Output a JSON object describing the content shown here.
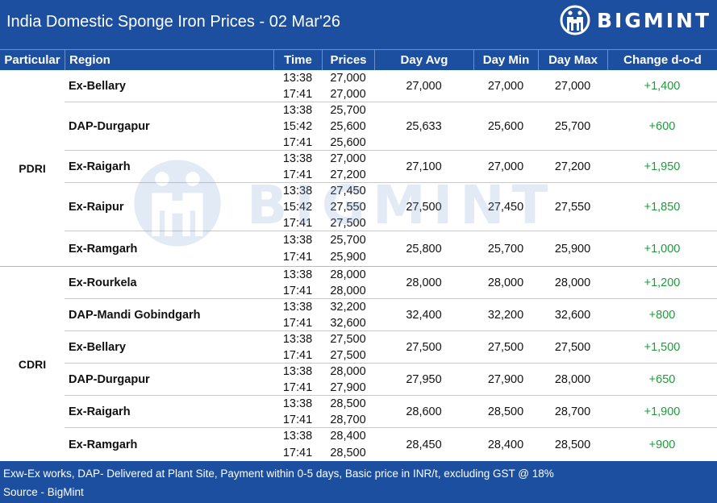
{
  "header": {
    "title": "India Domestic Sponge Iron Prices - 02 Mar'26",
    "logo_text": "BIGMINT"
  },
  "columns": [
    "Particular",
    "Region",
    "Time",
    "Prices",
    "Day Avg",
    "Day Min",
    "Day Max",
    "Change d-o-d"
  ],
  "groups": [
    {
      "label": "PDRI",
      "rows": [
        {
          "region": "Ex-Bellary",
          "entries": [
            [
              "13:38",
              "27,000"
            ],
            [
              "17:41",
              "27,000"
            ]
          ],
          "day_avg": "27,000",
          "day_min": "27,000",
          "day_max": "27,000",
          "change": "+1,400"
        },
        {
          "region": "DAP-Durgapur",
          "entries": [
            [
              "13:38",
              "25,700"
            ],
            [
              "15:42",
              "25,600"
            ],
            [
              "17:41",
              "25,600"
            ]
          ],
          "day_avg": "25,633",
          "day_min": "25,600",
          "day_max": "25,700",
          "change": "+600"
        },
        {
          "region": "Ex-Raigarh",
          "entries": [
            [
              "13:38",
              "27,000"
            ],
            [
              "17:41",
              "27,200"
            ]
          ],
          "day_avg": "27,100",
          "day_min": "27,000",
          "day_max": "27,200",
          "change": "+1,950"
        },
        {
          "region": "Ex-Raipur",
          "entries": [
            [
              "13:38",
              "27,450"
            ],
            [
              "15:42",
              "27,550"
            ],
            [
              "17:41",
              "27,500"
            ]
          ],
          "day_avg": "27,500",
          "day_min": "27,450",
          "day_max": "27,550",
          "change": "+1,850"
        },
        {
          "region": "Ex-Ramgarh",
          "entries": [
            [
              "13:38",
              "25,700"
            ],
            [
              "17:41",
              "25,900"
            ]
          ],
          "day_avg": "25,800",
          "day_min": "25,700",
          "day_max": "25,900",
          "change": "+1,000"
        }
      ]
    },
    {
      "label": "CDRI",
      "rows": [
        {
          "region": "Ex-Rourkela",
          "entries": [
            [
              "13:38",
              "28,000"
            ],
            [
              "17:41",
              "28,000"
            ]
          ],
          "day_avg": "28,000",
          "day_min": "28,000",
          "day_max": "28,000",
          "change": "+1,200"
        },
        {
          "region": "DAP-Mandi Gobindgarh",
          "entries": [
            [
              "13:38",
              "32,200"
            ],
            [
              "17:41",
              "32,600"
            ]
          ],
          "day_avg": "32,400",
          "day_min": "32,200",
          "day_max": "32,600",
          "change": "+800"
        },
        {
          "region": "Ex-Bellary",
          "entries": [
            [
              "13:38",
              "27,500"
            ],
            [
              "17:41",
              "27,500"
            ]
          ],
          "day_avg": "27,500",
          "day_min": "27,500",
          "day_max": "27,500",
          "change": "+1,500"
        },
        {
          "region": "DAP-Durgapur",
          "entries": [
            [
              "13:38",
              "28,000"
            ],
            [
              "17:41",
              "27,900"
            ]
          ],
          "day_avg": "27,950",
          "day_min": "27,900",
          "day_max": "28,000",
          "change": "+650"
        },
        {
          "region": "Ex-Raigarh",
          "entries": [
            [
              "13:38",
              "28,500"
            ],
            [
              "17:41",
              "28,700"
            ]
          ],
          "day_avg": "28,600",
          "day_min": "28,500",
          "day_max": "28,700",
          "change": "+1,900"
        },
        {
          "region": "Ex-Ramgarh",
          "entries": [
            [
              "13:38",
              "28,400"
            ],
            [
              "17:41",
              "28,500"
            ]
          ],
          "day_avg": "28,450",
          "day_min": "28,400",
          "day_max": "28,500",
          "change": "+900"
        }
      ]
    }
  ],
  "watermark": "BIGMINT",
  "footer": {
    "note": "Exw-Ex works, DAP- Delivered at Plant Site, Payment within 0-5 days, Basic price in INR/t, excluding GST @ 18%",
    "source": "Source - BigMint"
  },
  "colors": {
    "header_bg": "#1c4fa0",
    "change_positive": "#1f9a3c",
    "watermark": "#7da1d4"
  }
}
